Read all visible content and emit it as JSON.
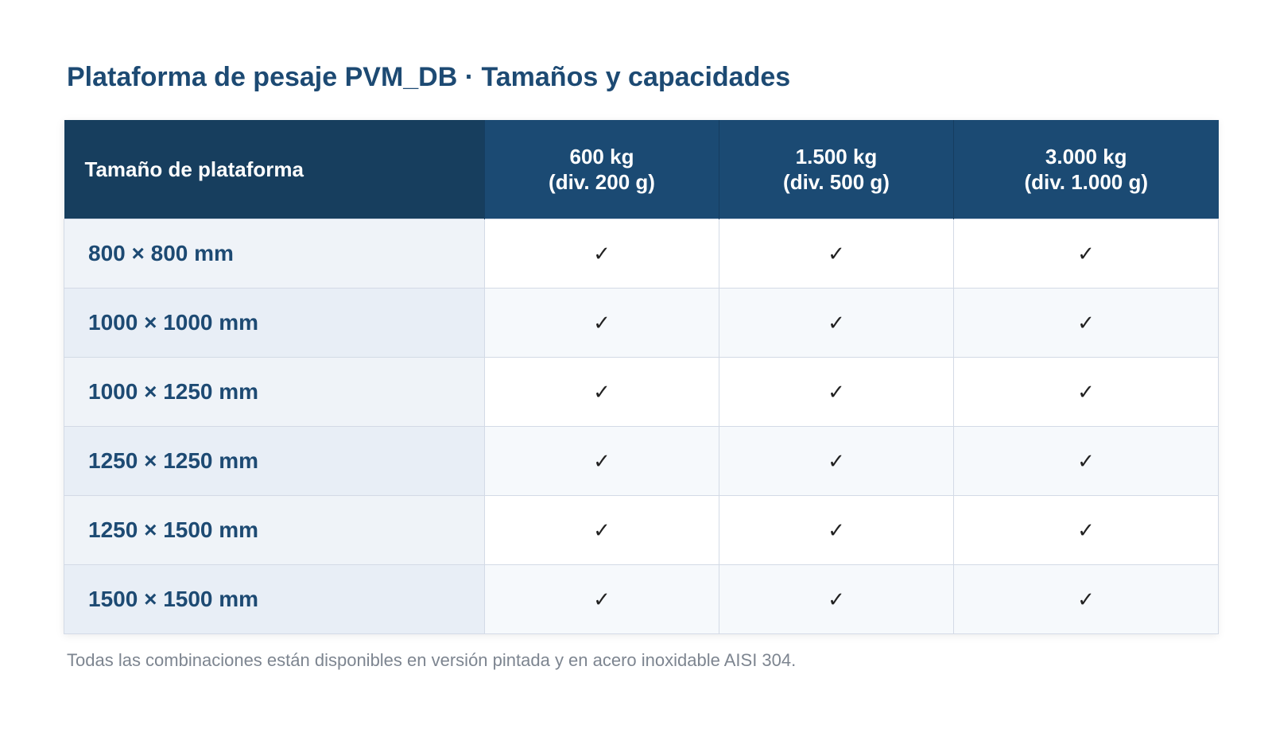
{
  "title": "Plataforma de pesaje PVM_DB · Tamaños y capacidades",
  "table": {
    "header": {
      "size_label": "Tamaño de plataforma",
      "capacities": [
        {
          "capacity": "600 kg",
          "division": "(div. 200 g)"
        },
        {
          "capacity": "1.500 kg",
          "division": "(div. 500 g)"
        },
        {
          "capacity": "3.000 kg",
          "division": "(div. 1.000 g)"
        }
      ]
    },
    "check_mark": "✓",
    "rows": [
      {
        "size": "800 × 800 mm"
      },
      {
        "size": "1000 × 1000 mm"
      },
      {
        "size": "1000 × 1250 mm"
      },
      {
        "size": "1250 × 1250 mm"
      },
      {
        "size": "1250 × 1500 mm"
      },
      {
        "size": "1500 × 1500 mm"
      }
    ]
  },
  "footnote": "Todas las combinaciones están disponibles en versión pintada y en acero inoxidable AISI 304."
}
